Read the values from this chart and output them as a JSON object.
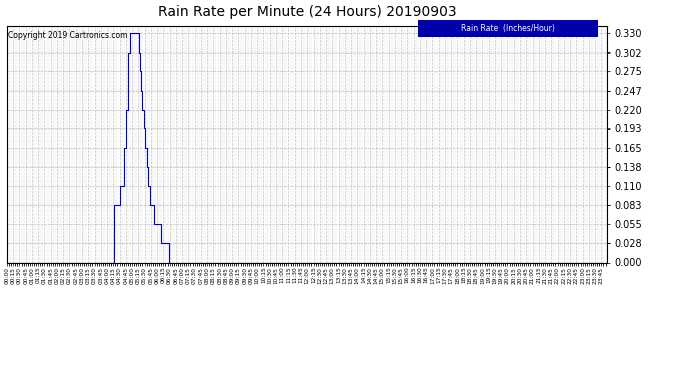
{
  "title": "Rain Rate per Minute (24 Hours) 20190903",
  "copyright": "Copyright 2019 Cartronics.com",
  "legend_label": "Rain Rate  (Inches/Hour)",
  "yticks": [
    0.0,
    0.028,
    0.055,
    0.083,
    0.11,
    0.138,
    0.165,
    0.193,
    0.22,
    0.247,
    0.275,
    0.302,
    0.33
  ],
  "ylim": [
    0.0,
    0.34
  ],
  "plot_bg_color": "#ffffff",
  "line_color": "#0000cc",
  "title_color": "#000000",
  "grid_color": "#c0c0c0",
  "legend_bg": "#0000aa",
  "legend_text_color": "#ffffff",
  "total_minutes": 1440,
  "xtick_interval": 15,
  "rain_data": [
    [
      0,
      0.0
    ],
    [
      255,
      0.0
    ],
    [
      256,
      0.083
    ],
    [
      270,
      0.083
    ],
    [
      271,
      0.11
    ],
    [
      280,
      0.11
    ],
    [
      281,
      0.165
    ],
    [
      285,
      0.165
    ],
    [
      286,
      0.22
    ],
    [
      290,
      0.22
    ],
    [
      291,
      0.302
    ],
    [
      294,
      0.302
    ],
    [
      295,
      0.33
    ],
    [
      315,
      0.33
    ],
    [
      316,
      0.302
    ],
    [
      318,
      0.302
    ],
    [
      319,
      0.275
    ],
    [
      321,
      0.275
    ],
    [
      322,
      0.247
    ],
    [
      324,
      0.247
    ],
    [
      325,
      0.22
    ],
    [
      328,
      0.22
    ],
    [
      329,
      0.193
    ],
    [
      331,
      0.193
    ],
    [
      332,
      0.165
    ],
    [
      334,
      0.165
    ],
    [
      335,
      0.138
    ],
    [
      338,
      0.138
    ],
    [
      339,
      0.11
    ],
    [
      342,
      0.11
    ],
    [
      343,
      0.083
    ],
    [
      352,
      0.083
    ],
    [
      353,
      0.055
    ],
    [
      368,
      0.055
    ],
    [
      369,
      0.028
    ],
    [
      388,
      0.028
    ],
    [
      389,
      0.0
    ],
    [
      1439,
      0.0
    ]
  ]
}
